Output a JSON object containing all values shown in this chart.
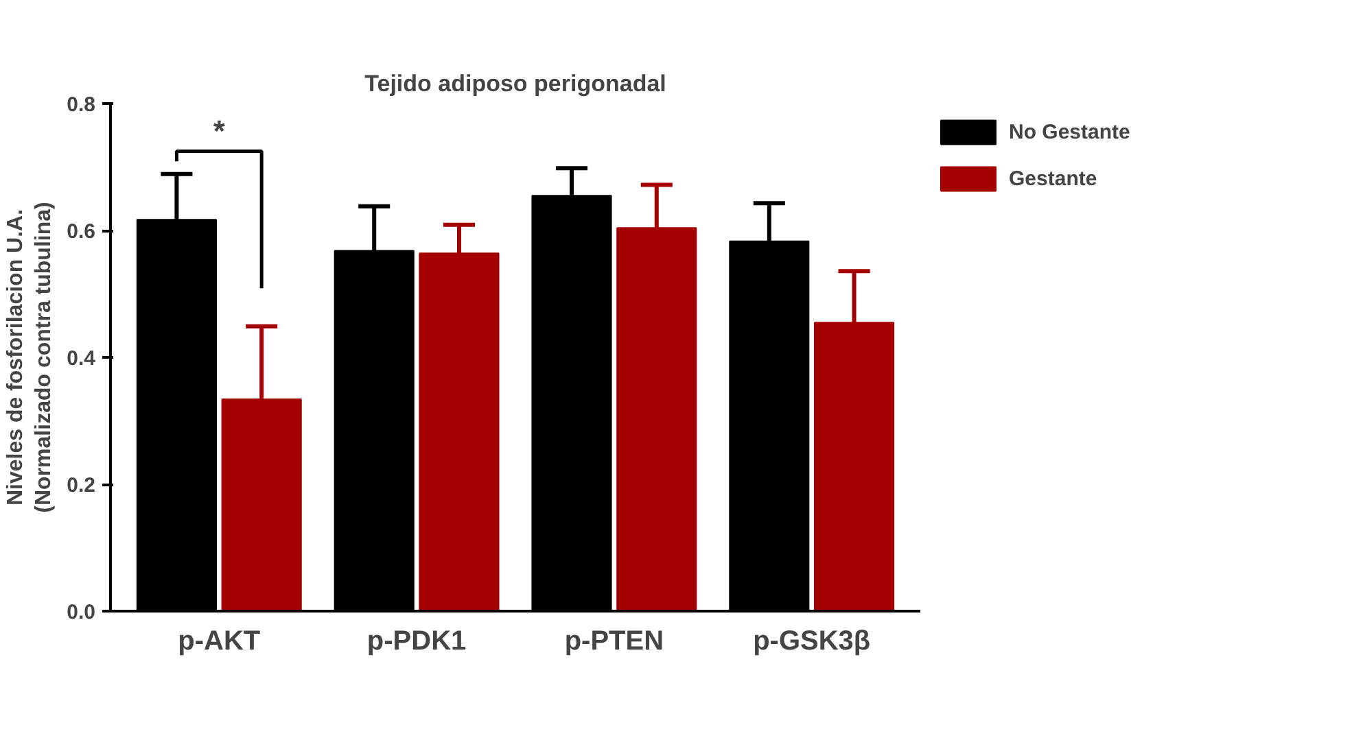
{
  "chart_data": {
    "type": "bar",
    "title": "Tejido adiposo perigonadal",
    "ylabel": "Niveles de fosforilacion U.A.\n(Normalizado contra tubulina)",
    "categories": [
      "p-AKT",
      "p-PDK1",
      "p-PTEN",
      "p-GSK3β"
    ],
    "series": [
      {
        "name": "No Gestante",
        "color": "#000000",
        "values": [
          0.617,
          0.568,
          0.655,
          0.583
        ],
        "errors": [
          [
            0.617,
            0.689
          ],
          [
            0.568,
            0.638
          ],
          [
            0.655,
            0.698
          ],
          [
            0.583,
            0.643
          ]
        ]
      },
      {
        "name": "Gestante",
        "color": "#a50000",
        "values": [
          0.334,
          0.564,
          0.604,
          0.455
        ],
        "errors": [
          [
            0.334,
            0.449
          ],
          [
            0.564,
            0.609
          ],
          [
            0.604,
            0.672
          ],
          [
            0.455,
            0.536
          ]
        ]
      }
    ],
    "ylim": [
      0,
      0.8
    ],
    "yticks": [
      {
        "value": 0,
        "label": "0.0"
      },
      0.2,
      0.4,
      0.6,
      0.8
    ],
    "annotations": [
      "*"
    ],
    "grid": false,
    "legend": "top right"
  }
}
